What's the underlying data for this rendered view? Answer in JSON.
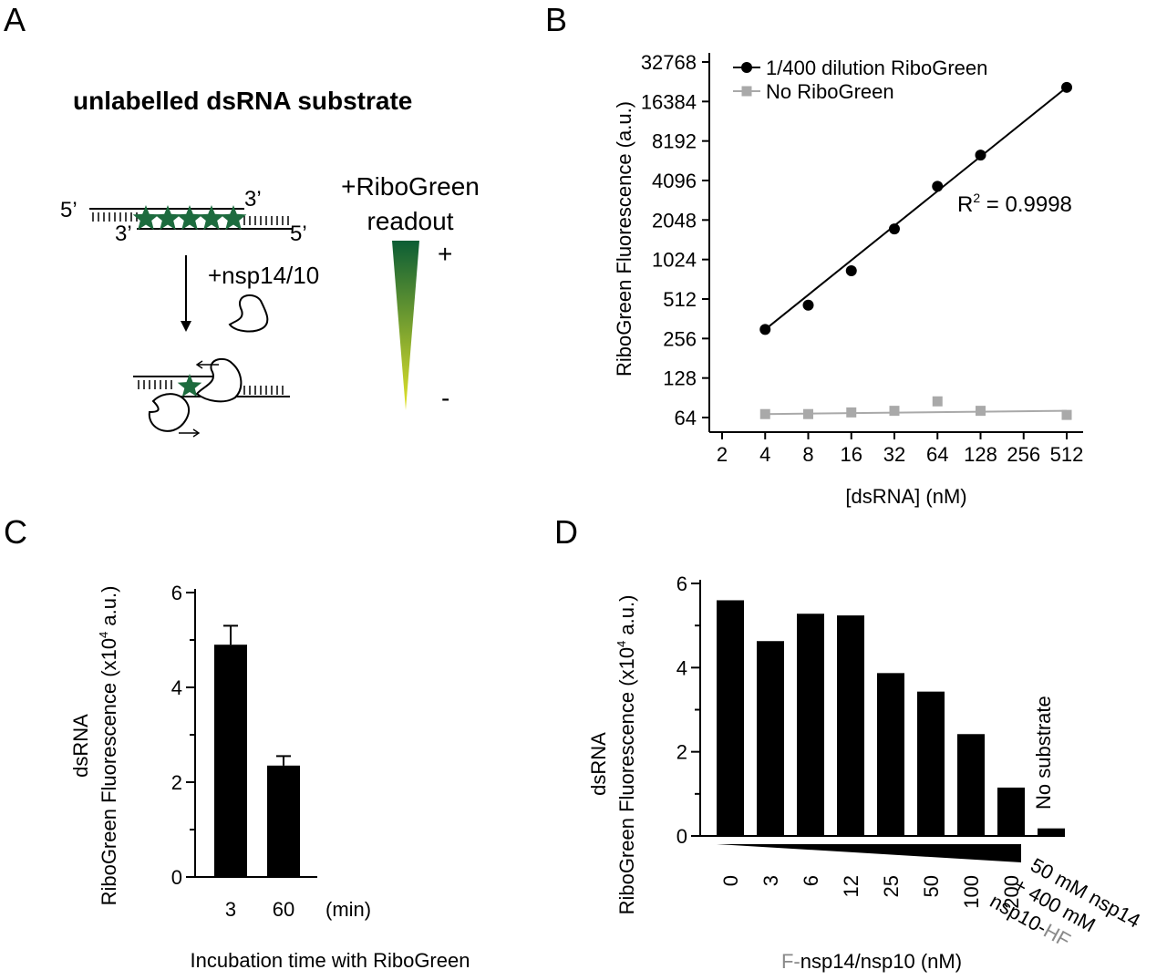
{
  "panels": {
    "a": {
      "letter": "A",
      "title": "unlabelled dsRNA substrate",
      "five_prime": "5’",
      "three_prime": "3’",
      "enzyme_label": "+nsp14/10",
      "readout_line1": "+RiboGreen",
      "readout_line2": "readout",
      "plus": "+",
      "minus": "-",
      "gradient_colors": {
        "high": "#0b5d35",
        "low": "#e4e42a"
      },
      "star_color": "#1d6b3e"
    },
    "b": {
      "letter": "B"
    },
    "c": {
      "letter": "C",
      "unit_label": "(min)"
    },
    "d": {
      "letter": "D",
      "xlabel_prefix": "F-",
      "xlabel_main": "nsp14/nsp10 (nM)",
      "nosub_line1": "50 mM nsp14",
      "nosub_line2": "+ 400 mM",
      "nosub_line3_a": "nsp10-",
      "nosub_line3_b": "HF",
      "gray_text_color": "#8a8a8a"
    }
  },
  "chart_data": [
    {
      "id": "B",
      "type": "scatter",
      "xlabel": "[dsRNA] (nM)",
      "ylabel": "RiboGreen Fluorescence (a.u.)",
      "xscale": "log2",
      "yscale": "log2",
      "xlim": [
        2,
        512
      ],
      "ylim": [
        64,
        32768
      ],
      "xticks": [
        2,
        4,
        8,
        16,
        32,
        64,
        128,
        256,
        512
      ],
      "yticks": [
        64,
        128,
        256,
        512,
        1024,
        2048,
        4096,
        8192,
        16384,
        32768
      ],
      "legend_position": "top-left",
      "annotation": {
        "text": "R",
        "sup": "2",
        "rest": " = 0.9998"
      },
      "series": [
        {
          "name": "1/400 dilution RiboGreen",
          "color": "#000000",
          "marker": "circle",
          "x": [
            4,
            8,
            16,
            32,
            64,
            128,
            512
          ],
          "y": [
            300,
            460,
            840,
            1750,
            3700,
            6400,
            21000
          ],
          "fit": [
            [
              4,
              300
            ],
            [
              512,
              21000
            ]
          ]
        },
        {
          "name": "No RiboGreen",
          "color": "#a9a9a9",
          "marker": "square",
          "x": [
            4,
            8,
            16,
            32,
            64,
            128,
            512
          ],
          "y": [
            68,
            68,
            70,
            72,
            85,
            72,
            67
          ],
          "fit": [
            [
              4,
              68
            ],
            [
              512,
              72
            ]
          ]
        }
      ]
    },
    {
      "id": "C",
      "type": "bar",
      "categories": [
        "3",
        "60"
      ],
      "values": [
        4.9,
        2.35
      ],
      "errors": [
        0.4,
        0.2
      ],
      "ylabel_line1": "dsRNA",
      "ylabel_line2": "RiboGreen Fluorescence (x10",
      "ylabel_sup": "4",
      "ylabel_end": " a.u.)",
      "xlabel": "Incubation time with RiboGreen",
      "ylim": [
        0,
        6
      ],
      "yticks": [
        0,
        2,
        4,
        6
      ]
    },
    {
      "id": "D",
      "type": "bar",
      "categories": [
        "0",
        "3",
        "6",
        "12",
        "25",
        "50",
        "100",
        "200"
      ],
      "values": [
        5.6,
        4.63,
        5.28,
        5.24,
        3.87,
        3.43,
        2.42,
        1.15
      ],
      "extra_bar": {
        "label": "No substrate",
        "value": 0.18
      },
      "ylabel_line1": "dsRNA",
      "ylabel_line2": "RiboGreen Fluorescence (x10",
      "ylabel_sup": "4",
      "ylabel_end": " a.u.)",
      "ylim": [
        0,
        6
      ],
      "yticks": [
        0,
        2,
        4,
        6
      ]
    }
  ]
}
